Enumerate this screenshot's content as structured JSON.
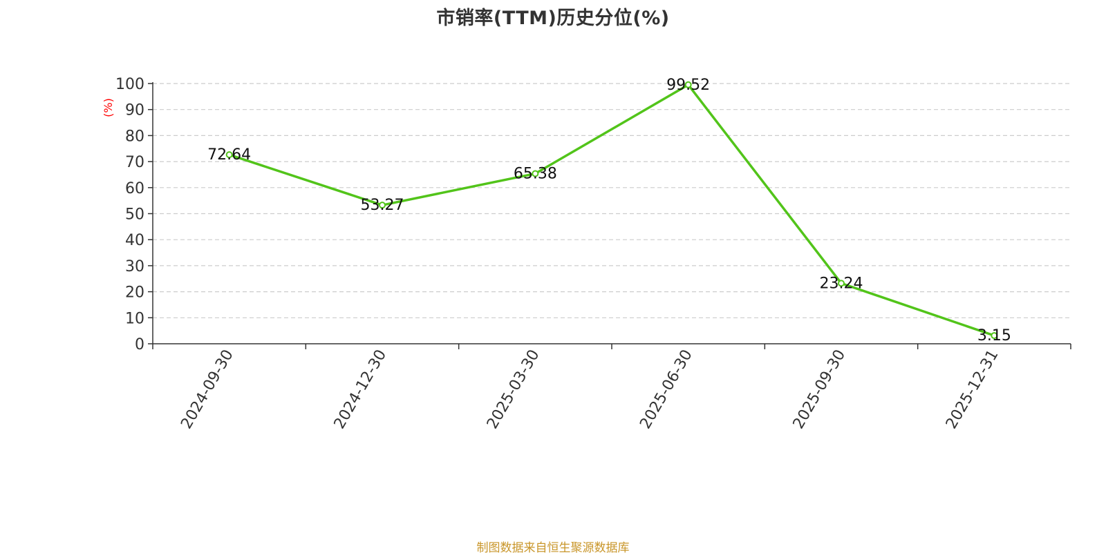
{
  "chart_data": {
    "type": "line",
    "title": "市销率(TTM)历史分位(%)",
    "ylabel": "(%)",
    "xlabel": "",
    "categories": [
      "2024-09-30",
      "2024-12-30",
      "2025-03-30",
      "2025-06-30",
      "2025-09-30",
      "2025-12-31"
    ],
    "series": [
      {
        "values": [
          72.64,
          53.27,
          65.38,
          99.52,
          23.24,
          3.15
        ]
      }
    ],
    "data_labels": [
      "72.64",
      "53.27",
      "65.38",
      "99.52",
      "23.24",
      "3.15"
    ],
    "ylim": [
      0,
      100
    ],
    "yticks": [
      0,
      10,
      20,
      30,
      40,
      50,
      60,
      70,
      80,
      90,
      100
    ],
    "grid": true,
    "legend": "none",
    "line_color": "#52c41a",
    "ylabel_color": "#ff0000"
  },
  "footer": {
    "source": "制图数据来自恒生聚源数据库",
    "color": "#c9962a"
  }
}
